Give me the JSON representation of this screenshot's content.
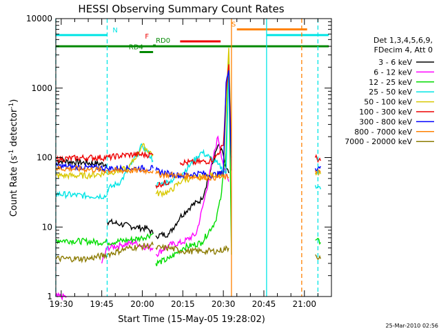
{
  "chart_data": {
    "type": "line",
    "title": "HESSI Observing Summary Count Rates",
    "xlabel": "Start Time (15-May-05 19:28:02)",
    "ylabel_main": "Count Rate (s",
    "ylabel_sup1": "-1",
    "ylabel_mid": " detector",
    "ylabel_sup2": "-1",
    "ylabel_end": ")",
    "x_ticks": [
      "19:30",
      "19:45",
      "20:00",
      "20:15",
      "20:30",
      "20:45",
      "21:00"
    ],
    "y_ticks": [
      "1",
      "10",
      "100",
      "1000",
      "10000"
    ],
    "ylim": [
      1,
      10000
    ],
    "xlim_minutes": [
      -2,
      100
    ],
    "y_scale": "log",
    "footer": "25-Mar-2010 02:56",
    "legend": {
      "header": [
        "Det 1,3,4,5,6,9,",
        "FDecim 4, Att 0"
      ],
      "entries": [
        {
          "label": "3 - 6 keV",
          "color": "#000000"
        },
        {
          "label": "6 - 12 keV",
          "color": "#ff00ff"
        },
        {
          "label": "12 - 25 keV",
          "color": "#00dd00"
        },
        {
          "label": "25 - 50 keV",
          "color": "#00e5e5"
        },
        {
          "label": "50 - 100 keV",
          "color": "#d8c800"
        },
        {
          "label": "100 - 300 keV",
          "color": "#ee0000"
        },
        {
          "label": "300 - 800 keV",
          "color": "#0000ff"
        },
        {
          "label": "800 - 7000 keV",
          "color": "#ff8000"
        },
        {
          "label": "7000 - 20000 keV",
          "color": "#8b7a00"
        }
      ]
    },
    "flags": [
      {
        "label": "N",
        "color": "#00e5e5",
        "level": 5800,
        "x": [
          -2,
          17
        ],
        "label_x": 19
      },
      {
        "label": "S",
        "color": "#ff8000",
        "level": 7000,
        "x": [
          65,
          91
        ],
        "label_x": 63
      },
      {
        "label": "F",
        "color": "#ee0000",
        "level": 4700,
        "x": [
          44,
          59
        ],
        "label_x": 31
      },
      {
        "label": "RD0",
        "color": "#008800",
        "level": 4100,
        "x": [
          34,
          35
        ],
        "label_x": 35
      },
      {
        "label": "RD4",
        "color": "#008800",
        "level": 3300,
        "x": [
          29,
          34
        ],
        "label_x": 25
      },
      {
        "label": "",
        "color": "#008800",
        "level": 4000,
        "x": [
          -2,
          99
        ],
        "label_x": null
      },
      {
        "label": "",
        "color": "#00e5e5",
        "level": 5800,
        "x": [
          76,
          99
        ],
        "label_x": null
      }
    ],
    "markers": [
      {
        "x": -2,
        "color": "#00e5e5",
        "style": "dashed"
      },
      {
        "x": 17,
        "color": "#00e5e5",
        "style": "dashed"
      },
      {
        "x": 63,
        "color": "#ff8000",
        "style": "solid"
      },
      {
        "x": 76,
        "color": "#00e5e5",
        "style": "solid"
      },
      {
        "x": 89,
        "color": "#ff8000",
        "style": "dashed"
      },
      {
        "x": 95,
        "color": "#00e5e5",
        "style": "dashed"
      }
    ],
    "series": [
      {
        "color": "#000000",
        "segments": [
          [
            [
              -2,
              90
            ],
            [
              17,
              80
            ]
          ],
          [
            [
              17,
              12
            ],
            [
              22,
              11
            ],
            [
              27,
              10
            ],
            [
              32,
              9.5
            ],
            [
              34,
              8
            ]
          ],
          [
            [
              35,
              7.5
            ],
            [
              40,
              8
            ],
            [
              44,
              14
            ],
            [
              48,
              20
            ],
            [
              52,
              25
            ],
            [
              55,
              60
            ],
            [
              58,
              150
            ],
            [
              60,
              110
            ],
            [
              61,
              70
            ],
            [
              62,
              60
            ]
          ]
        ]
      },
      {
        "color": "#ff00ff",
        "segments": [
          [
            [
              -2,
              1
            ],
            [
              2,
              1
            ]
          ],
          [
            [
              15,
              3
            ],
            [
              17,
              5
            ],
            [
              22,
              5.5
            ],
            [
              27,
              6
            ],
            [
              32,
              5
            ],
            [
              34,
              5
            ]
          ],
          [
            [
              35,
              4
            ],
            [
              40,
              5.5
            ],
            [
              45,
              6
            ],
            [
              50,
              8
            ],
            [
              53,
              25
            ],
            [
              56,
              90
            ],
            [
              58,
              200
            ],
            [
              60,
              80
            ],
            [
              61,
              55
            ],
            [
              62,
              45
            ]
          ]
        ]
      },
      {
        "color": "#00dd00",
        "segments": [
          [
            [
              -2,
              6.5
            ],
            [
              17,
              6
            ],
            [
              25,
              6.5
            ],
            [
              30,
              7
            ],
            [
              34,
              8
            ]
          ],
          [
            [
              35,
              3
            ],
            [
              40,
              3.5
            ],
            [
              45,
              5
            ],
            [
              52,
              6
            ],
            [
              57,
              12
            ],
            [
              59,
              25
            ],
            [
              61,
              120
            ],
            [
              62,
              3000
            ],
            [
              63,
              4
            ]
          ],
          [
            [
              94,
              6.5
            ],
            [
              96,
              6
            ]
          ]
        ]
      },
      {
        "color": "#00e5e5",
        "segments": [
          [
            [
              -2,
              30
            ],
            [
              10,
              28
            ],
            [
              17,
              28
            ]
          ],
          [
            [
              17,
              35
            ],
            [
              22,
              45
            ],
            [
              26,
              80
            ],
            [
              30,
              150
            ],
            [
              32,
              120
            ],
            [
              34,
              90
            ]
          ],
          [
            [
              35,
              40
            ],
            [
              40,
              45
            ],
            [
              45,
              60
            ],
            [
              52,
              120
            ],
            [
              55,
              100
            ],
            [
              58,
              80
            ],
            [
              61,
              60
            ],
            [
              62,
              2000
            ],
            [
              63,
              90
            ]
          ],
          [
            [
              94,
              40
            ],
            [
              96,
              35
            ]
          ]
        ]
      },
      {
        "color": "#d8c800",
        "segments": [
          [
            [
              -2,
              55
            ],
            [
              10,
              55
            ],
            [
              17,
              60
            ],
            [
              25,
              70
            ],
            [
              30,
              150
            ],
            [
              34,
              110
            ]
          ],
          [
            [
              35,
              30
            ],
            [
              40,
              32
            ],
            [
              45,
              48
            ],
            [
              55,
              55
            ],
            [
              60,
              60
            ],
            [
              62,
              3800
            ],
            [
              63,
              120
            ]
          ],
          [
            [
              94,
              60
            ],
            [
              96,
              58
            ]
          ]
        ]
      },
      {
        "color": "#ee0000",
        "segments": [
          [
            [
              -2,
              95
            ],
            [
              10,
              100
            ],
            [
              17,
              100
            ],
            [
              25,
              110
            ],
            [
              34,
              110
            ]
          ],
          [
            [
              35,
              40
            ],
            [
              40,
              45
            ]
          ],
          [
            [
              44,
              85
            ],
            [
              50,
              85
            ],
            [
              55,
              90
            ],
            [
              57,
              100
            ],
            [
              60,
              150
            ],
            [
              61,
              900
            ],
            [
              62,
              2200
            ],
            [
              63,
              100
            ]
          ],
          [
            [
              94,
              100
            ],
            [
              96,
              90
            ]
          ]
        ]
      },
      {
        "color": "#0000ff",
        "segments": [
          [
            [
              -2,
              75
            ],
            [
              10,
              72
            ],
            [
              17,
              70
            ],
            [
              25,
              70
            ],
            [
              34,
              70
            ]
          ],
          [
            [
              35,
              65
            ],
            [
              40,
              58
            ],
            [
              45,
              55
            ],
            [
              52,
              60
            ],
            [
              55,
              55
            ],
            [
              60,
              60
            ],
            [
              61,
              1200
            ],
            [
              62,
              1800
            ],
            [
              63,
              65
            ]
          ],
          [
            [
              94,
              70
            ],
            [
              96,
              75
            ]
          ]
        ]
      },
      {
        "color": "#ff8000",
        "segments": [
          [
            [
              -2,
              70
            ],
            [
              10,
              68
            ],
            [
              17,
              65
            ],
            [
              25,
              65
            ],
            [
              34,
              65
            ]
          ],
          [
            [
              35,
              58
            ],
            [
              40,
              56
            ],
            [
              45,
              55
            ],
            [
              52,
              52
            ],
            [
              58,
              52
            ],
            [
              62,
              52
            ]
          ],
          [
            [
              94,
              65
            ],
            [
              96,
              62
            ]
          ]
        ]
      },
      {
        "color": "#8b7a00",
        "segments": [
          [
            [
              -2,
              3.5
            ],
            [
              10,
              3.5
            ],
            [
              17,
              4
            ],
            [
              25,
              5
            ],
            [
              34,
              5.5
            ]
          ],
          [
            [
              35,
              5
            ],
            [
              40,
              5
            ],
            [
              45,
              4.5
            ],
            [
              52,
              4.5
            ],
            [
              58,
              4.5
            ],
            [
              62,
              5
            ]
          ],
          [
            [
              94,
              4
            ],
            [
              96,
              3.5
            ]
          ]
        ]
      }
    ]
  }
}
